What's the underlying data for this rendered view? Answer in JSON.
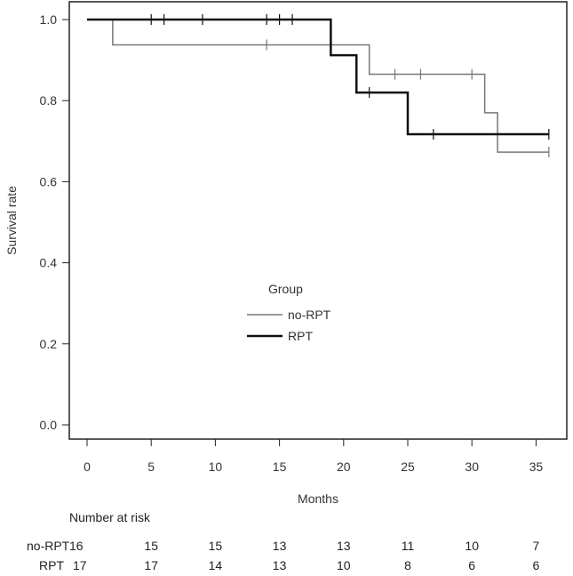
{
  "chart_data": {
    "type": "line",
    "subtype": "kaplan-meier step",
    "xlabel": "Months",
    "ylabel": "Survival rate",
    "xlim": [
      0,
      36
    ],
    "ylim": [
      0,
      1
    ],
    "x_ticks": [
      0,
      5,
      10,
      15,
      20,
      25,
      30,
      35
    ],
    "y_ticks": [
      "0.0",
      "0.2",
      "0.4",
      "0.6",
      "0.8",
      "1.0"
    ],
    "legend": {
      "title": "Group",
      "placement": "center",
      "entries": [
        "no-RPT",
        "RPT"
      ]
    },
    "series": [
      {
        "name": "no-RPT",
        "color": "#777777",
        "steps": [
          [
            0,
            1.0
          ],
          [
            2,
            0.9375
          ],
          [
            22,
            0.865
          ],
          [
            31,
            0.77
          ],
          [
            32,
            0.673
          ],
          [
            36,
            0.673
          ]
        ],
        "censors": [
          [
            14,
            0.9375
          ],
          [
            24,
            0.865
          ],
          [
            26,
            0.865
          ],
          [
            30,
            0.865
          ],
          [
            36,
            0.673
          ]
        ]
      },
      {
        "name": "RPT",
        "color": "#111111",
        "steps": [
          [
            0,
            1.0
          ],
          [
            19,
            0.912
          ],
          [
            21,
            0.82
          ],
          [
            25,
            0.717
          ],
          [
            36,
            0.717
          ]
        ],
        "censors": [
          [
            5,
            1.0
          ],
          [
            6,
            1.0
          ],
          [
            9,
            1.0
          ],
          [
            14,
            1.0
          ],
          [
            15,
            1.0
          ],
          [
            16,
            1.0
          ],
          [
            22,
            0.82
          ],
          [
            27,
            0.717
          ],
          [
            36,
            0.717
          ]
        ]
      }
    ],
    "risk_table": {
      "title": "Number at risk",
      "times": [
        0,
        5,
        10,
        15,
        20,
        25,
        30,
        35
      ],
      "rows": [
        {
          "label": "no-RPT",
          "counts": [
            "16",
            "15",
            "15",
            "13",
            "13",
            "11",
            "10",
            "7"
          ]
        },
        {
          "label": "RPT",
          "counts": [
            "17",
            "17",
            "14",
            "13",
            "10",
            "8",
            "6",
            "6"
          ]
        }
      ]
    }
  }
}
